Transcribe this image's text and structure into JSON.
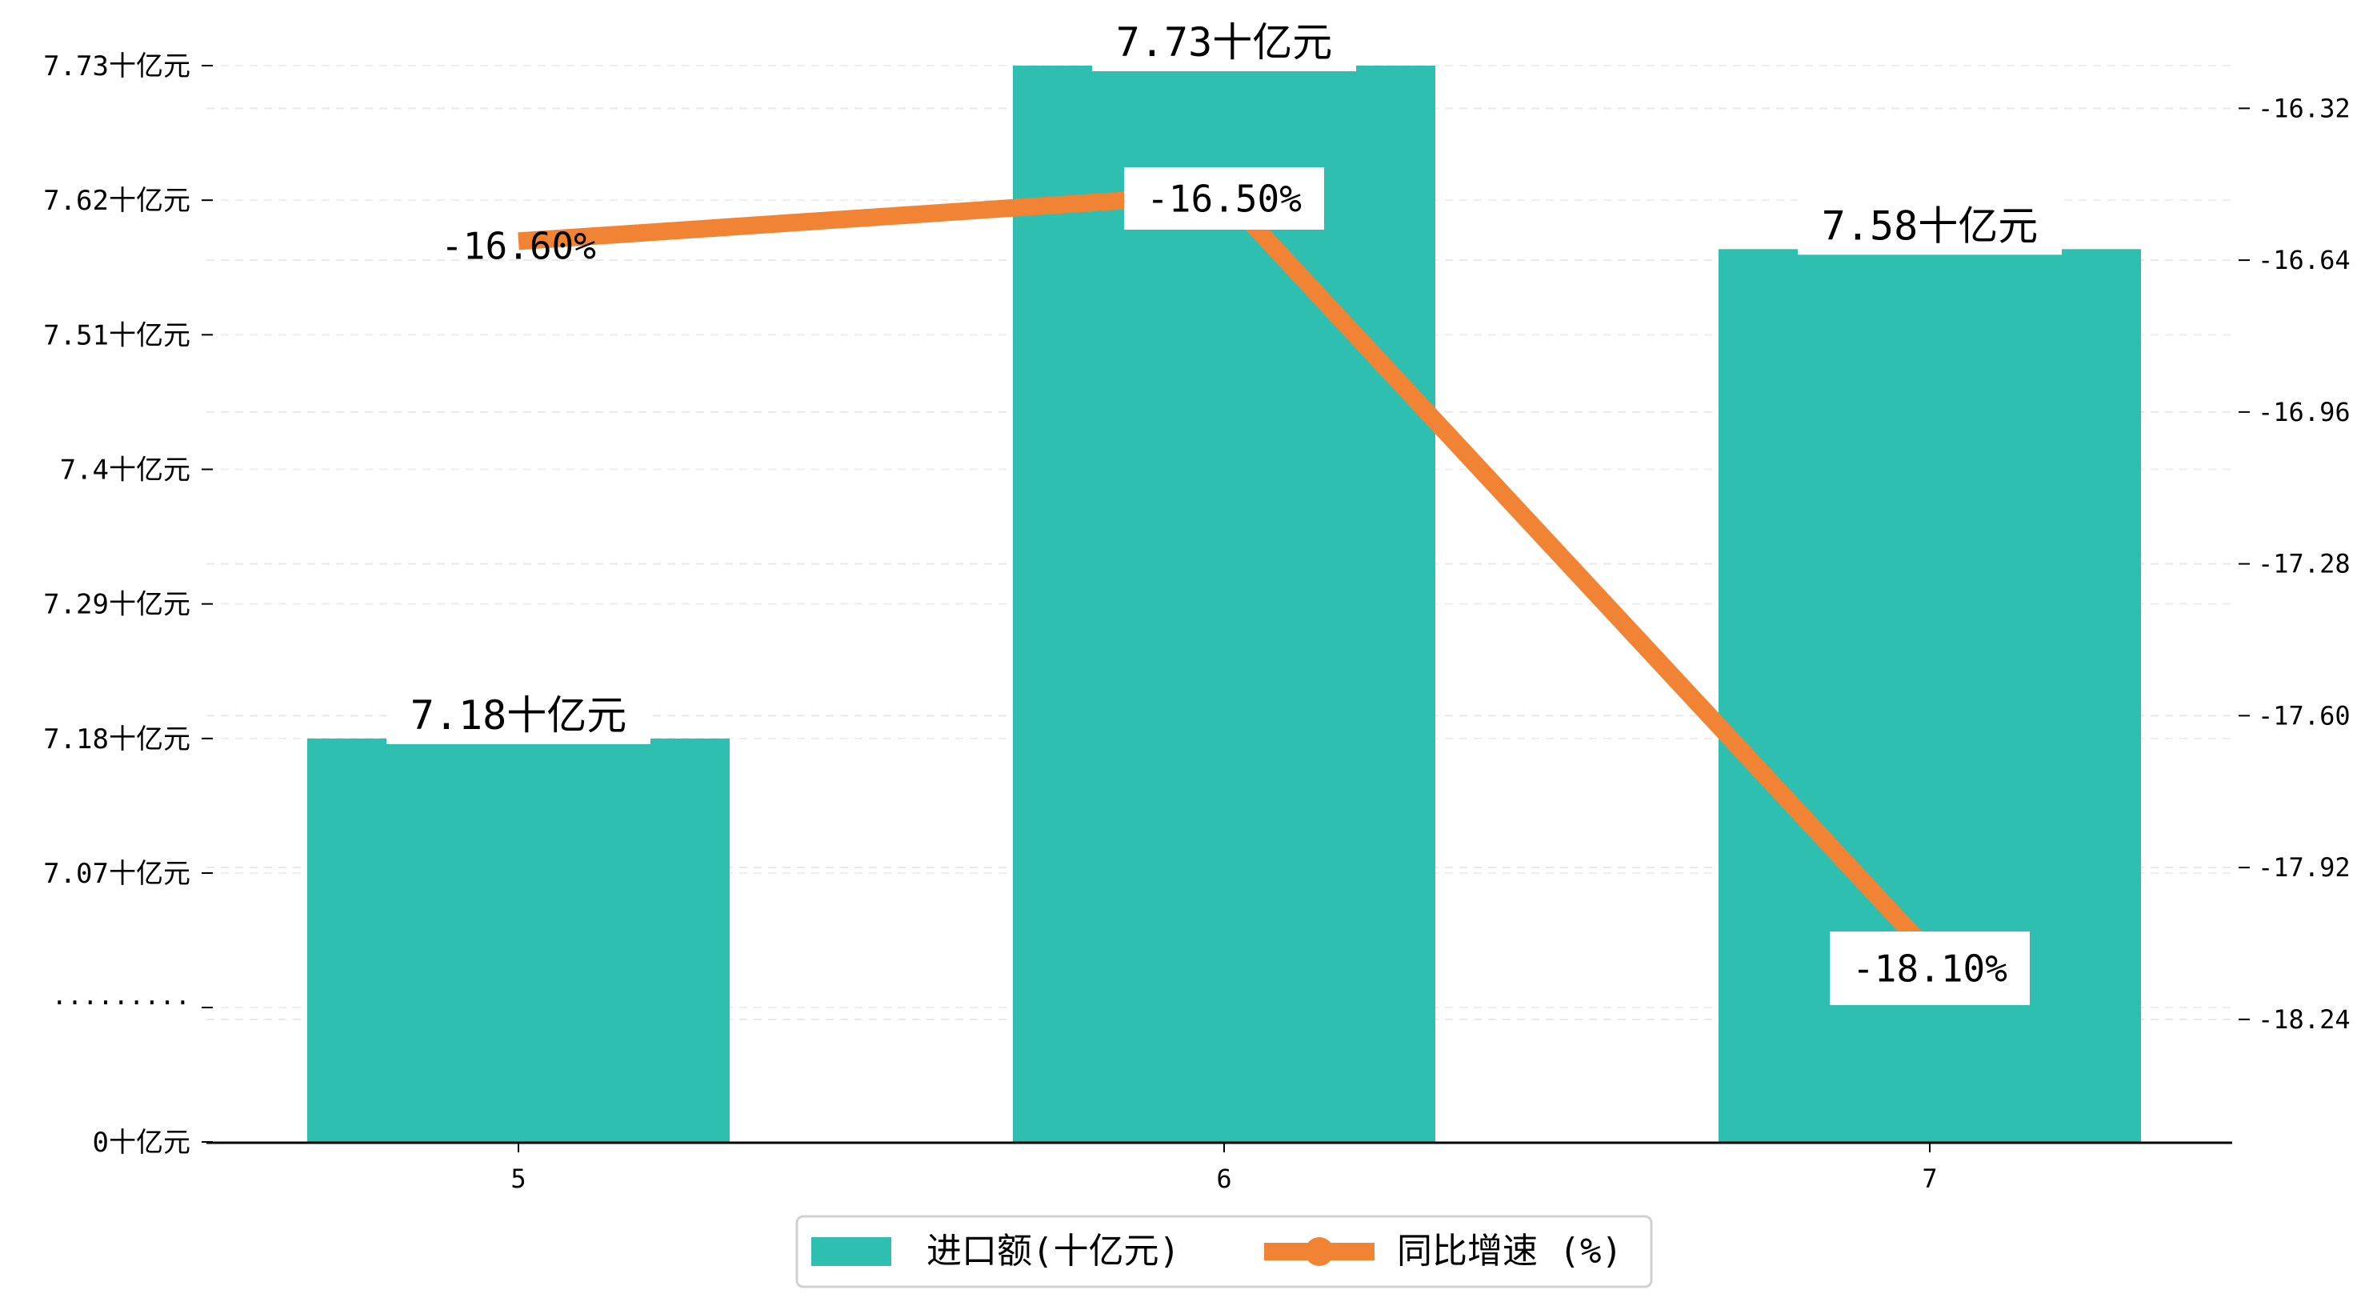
{
  "chart_data": {
    "type": "bar",
    "categories": [
      "5",
      "6",
      "7"
    ],
    "series": [
      {
        "name": "进口额(十亿元)",
        "kind": "bar",
        "axis": "left",
        "values": [
          7.18,
          7.73,
          7.58
        ],
        "labels": [
          "7.18十亿元",
          "7.73十亿元",
          "7.58十亿元"
        ],
        "color": "#2ebfb0"
      },
      {
        "name": "同比增速 (%)",
        "kind": "line",
        "axis": "right",
        "values": [
          -16.6,
          -16.5,
          -18.1
        ],
        "labels": [
          "-16.60%",
          "-16.50%",
          "-18.10%"
        ],
        "color": "#f08434"
      }
    ],
    "left_axis": {
      "broken": true,
      "break_label": "·········",
      "ticks": [
        {
          "value": 0,
          "label": "0十亿元"
        },
        {
          "value": 7.07,
          "label": "7.07十亿元"
        },
        {
          "value": 7.18,
          "label": "7.18十亿元"
        },
        {
          "value": 7.29,
          "label": "7.29十亿元"
        },
        {
          "value": 7.4,
          "label": "7.4十亿元"
        },
        {
          "value": 7.51,
          "label": "7.51十亿元"
        },
        {
          "value": 7.62,
          "label": "7.62十亿元"
        },
        {
          "value": 7.73,
          "label": "7.73十亿元"
        }
      ]
    },
    "right_axis": {
      "range": [
        -18.5,
        -16.23
      ],
      "ticks": [
        {
          "value": -16.32,
          "label": "-16.32"
        },
        {
          "value": -16.64,
          "label": "-16.64"
        },
        {
          "value": -16.96,
          "label": "-16.96"
        },
        {
          "value": -17.28,
          "label": "-17.28"
        },
        {
          "value": -17.6,
          "label": "-17.60"
        },
        {
          "value": -17.92,
          "label": "-17.92"
        },
        {
          "value": -18.24,
          "label": "-18.24"
        }
      ]
    },
    "grid": true,
    "legend_position": "bottom-center"
  }
}
